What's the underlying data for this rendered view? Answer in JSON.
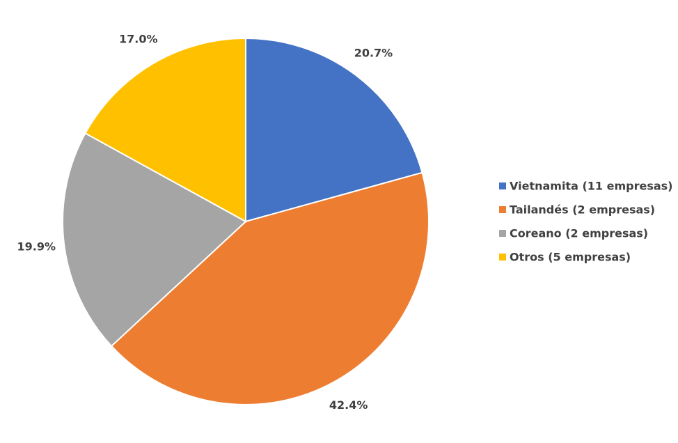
{
  "chart_data": {
    "type": "pie",
    "categories": [
      "Vietnamita (11 empresas)",
      "Tailandés (2 empresas)",
      "Coreano (2 empresas)",
      "Otros (5 empresas)"
    ],
    "values": [
      20.7,
      42.4,
      19.9,
      17.0
    ],
    "value_labels": [
      "20.7%",
      "42.4%",
      "19.9%",
      "17.0%"
    ],
    "colors": [
      "#4472c4",
      "#ed7d31",
      "#a5a5a5",
      "#ffc000"
    ],
    "legend": "right"
  }
}
